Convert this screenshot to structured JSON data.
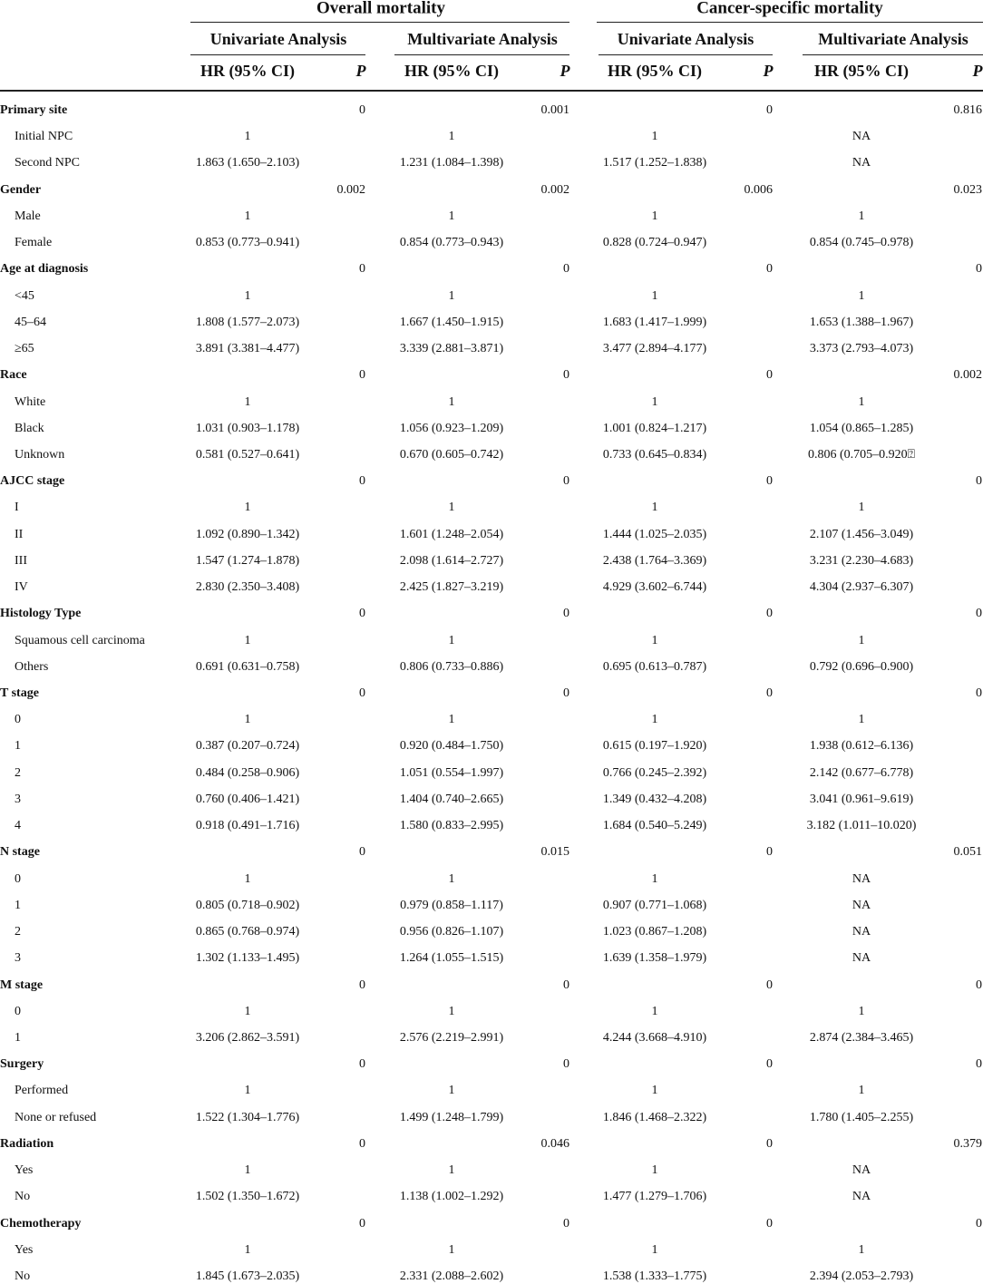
{
  "table": {
    "titles": [
      "Overall mortality",
      "Cancer-specific mortality"
    ],
    "analyses": [
      "Univariate Analysis",
      "Multivariate Analysis",
      "Univariate Analysis",
      "Multivariate Analysis"
    ],
    "columns": [
      "HR (95% CI)",
      "P",
      "HR (95% CI)",
      "P",
      "HR (95% CI)",
      "P",
      "HR (95% CI)",
      "P"
    ],
    "rows": [
      {
        "group": "Primary site",
        "p": [
          "0",
          "0.001",
          "0",
          "0.816"
        ]
      },
      {
        "label": "Initial NPC",
        "hr": [
          "1",
          "1",
          "1",
          "NA"
        ]
      },
      {
        "label": "Second NPC",
        "hr": [
          "1.863 (1.650–2.103)",
          "1.231 (1.084–1.398)",
          "1.517 (1.252–1.838)",
          "NA"
        ]
      },
      {
        "group": "Gender",
        "p": [
          "0.002",
          "0.002",
          "0.006",
          "0.023"
        ]
      },
      {
        "label": "Male",
        "hr": [
          "1",
          "1",
          "1",
          "1"
        ]
      },
      {
        "label": "Female",
        "hr": [
          "0.853 (0.773–0.941)",
          "0.854 (0.773–0.943)",
          "0.828 (0.724–0.947)",
          "0.854 (0.745–0.978)"
        ]
      },
      {
        "group": "Age at diagnosis",
        "p": [
          "0",
          "0",
          "0",
          "0"
        ]
      },
      {
        "label": "<45",
        "hr": [
          "1",
          "1",
          "1",
          "1"
        ]
      },
      {
        "label": "45–64",
        "hr": [
          "1.808 (1.577–2.073)",
          "1.667 (1.450–1.915)",
          "1.683 (1.417–1.999)",
          "1.653 (1.388–1.967)"
        ]
      },
      {
        "label": "≥65",
        "hr": [
          "3.891 (3.381–4.477)",
          "3.339 (2.881–3.871)",
          "3.477 (2.894–4.177)",
          "3.373 (2.793–4.073)"
        ]
      },
      {
        "group": "Race",
        "p": [
          "0",
          "0",
          "0",
          "0.002"
        ]
      },
      {
        "label": "White",
        "hr": [
          "1",
          "1",
          "1",
          "1"
        ]
      },
      {
        "label": "Black",
        "hr": [
          "1.031 (0.903–1.178)",
          "1.056 (0.923–1.209)",
          "1.001 (0.824–1.217)",
          "1.054 (0.865–1.285)"
        ]
      },
      {
        "label": "Unknown",
        "hr": [
          "0.581 (0.527–0.641)",
          "0.670 (0.605–0.742)",
          "0.733 (0.645–0.834)",
          "0.806 (0.705–0.920⍰"
        ]
      },
      {
        "group": "AJCC stage",
        "p": [
          "0",
          "0",
          "0",
          "0"
        ]
      },
      {
        "label": "I",
        "hr": [
          "1",
          "1",
          "1",
          "1"
        ]
      },
      {
        "label": "II",
        "hr": [
          "1.092 (0.890–1.342)",
          "1.601 (1.248–2.054)",
          "1.444 (1.025–2.035)",
          "2.107 (1.456–3.049)"
        ]
      },
      {
        "label": "III",
        "hr": [
          "1.547 (1.274–1.878)",
          "2.098 (1.614–2.727)",
          "2.438 (1.764–3.369)",
          "3.231 (2.230–4.683)"
        ]
      },
      {
        "label": "IV",
        "hr": [
          "2.830 (2.350–3.408)",
          "2.425 (1.827–3.219)",
          "4.929 (3.602–6.744)",
          "4.304 (2.937–6.307)"
        ]
      },
      {
        "group": "Histology Type",
        "p": [
          "0",
          "0",
          "0",
          "0"
        ]
      },
      {
        "label": "Squamous cell carcinoma",
        "hr": [
          "1",
          "1",
          "1",
          "1"
        ]
      },
      {
        "label": "Others",
        "hr": [
          "0.691 (0.631–0.758)",
          "0.806 (0.733–0.886)",
          "0.695 (0.613–0.787)",
          "0.792 (0.696–0.900)"
        ]
      },
      {
        "group": "T stage",
        "p": [
          "0",
          "0",
          "0",
          "0"
        ]
      },
      {
        "label": "0",
        "hr": [
          "1",
          "1",
          "1",
          "1"
        ]
      },
      {
        "label": "1",
        "hr": [
          "0.387 (0.207–0.724)",
          "0.920 (0.484–1.750)",
          "0.615 (0.197–1.920)",
          "1.938 (0.612–6.136)"
        ]
      },
      {
        "label": "2",
        "hr": [
          "0.484 (0.258–0.906)",
          "1.051 (0.554–1.997)",
          "0.766 (0.245–2.392)",
          "2.142 (0.677–6.778)"
        ]
      },
      {
        "label": "3",
        "hr": [
          "0.760 (0.406–1.421)",
          "1.404 (0.740–2.665)",
          "1.349 (0.432–4.208)",
          "3.041 (0.961–9.619)"
        ]
      },
      {
        "label": "4",
        "hr": [
          "0.918 (0.491–1.716)",
          "1.580 (0.833–2.995)",
          "1.684 (0.540–5.249)",
          "3.182 (1.011–10.020)"
        ]
      },
      {
        "group": "N stage",
        "p": [
          "0",
          "0.015",
          "0",
          "0.051"
        ]
      },
      {
        "label": "0",
        "hr": [
          "1",
          "1",
          "1",
          "NA"
        ]
      },
      {
        "label": "1",
        "hr": [
          "0.805 (0.718–0.902)",
          "0.979 (0.858–1.117)",
          "0.907 (0.771–1.068)",
          "NA"
        ]
      },
      {
        "label": "2",
        "hr": [
          "0.865 (0.768–0.974)",
          "0.956 (0.826–1.107)",
          "1.023 (0.867–1.208)",
          "NA"
        ]
      },
      {
        "label": "3",
        "hr": [
          "1.302 (1.133–1.495)",
          "1.264 (1.055–1.515)",
          "1.639 (1.358–1.979)",
          "NA"
        ]
      },
      {
        "group": "M stage",
        "p": [
          "0",
          "0",
          "0",
          "0"
        ]
      },
      {
        "label": "0",
        "hr": [
          "1",
          "1",
          "1",
          "1"
        ]
      },
      {
        "label": "1",
        "hr": [
          "3.206 (2.862–3.591)",
          "2.576 (2.219–2.991)",
          "4.244 (3.668–4.910)",
          "2.874 (2.384–3.465)"
        ]
      },
      {
        "group": "Surgery",
        "p": [
          "0",
          "0",
          "0",
          "0"
        ]
      },
      {
        "label": "Performed",
        "hr": [
          "1",
          "1",
          "1",
          "1"
        ]
      },
      {
        "label": "None or refused",
        "hr": [
          "1.522 (1.304–1.776)",
          "1.499 (1.248–1.799)",
          "1.846 (1.468–2.322)",
          "1.780 (1.405–2.255)"
        ]
      },
      {
        "group": "Radiation",
        "p": [
          "0",
          "0.046",
          "0",
          "0.379"
        ]
      },
      {
        "label": "Yes",
        "hr": [
          "1",
          "1",
          "1",
          "NA"
        ]
      },
      {
        "label": "No",
        "hr": [
          "1.502 (1.350–1.672)",
          "1.138 (1.002–1.292)",
          "1.477 (1.279–1.706)",
          "NA"
        ]
      },
      {
        "group": "Chemotherapy",
        "p": [
          "0",
          "0",
          "0",
          "0"
        ]
      },
      {
        "label": "Yes",
        "hr": [
          "1",
          "1",
          "1",
          "1"
        ]
      },
      {
        "label": "No",
        "hr": [
          "1.845 (1.673–2.035)",
          "2.331 (2.088–2.602)",
          "1.538 (1.333–1.775)",
          "2.394 (2.053–2.793)"
        ]
      }
    ]
  }
}
